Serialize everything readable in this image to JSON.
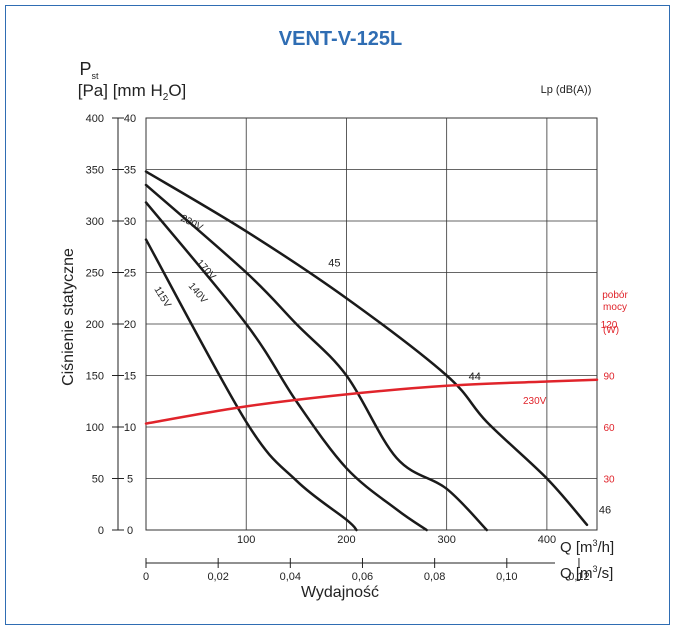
{
  "chart_data": {
    "type": "line",
    "title": "VENT-V-125L",
    "ylabel": "Ciśnienie statyczne",
    "y_unit_symbol": "P",
    "y_unit_sub": "st",
    "y_units": {
      "pa": "[Pa]",
      "mm_prefix": "[mm H",
      "mm_sub": "2",
      "mm_suffix": "O]"
    },
    "xlabel": "Wydajność",
    "x_unit_m3h": {
      "prefix": "Q [m",
      "sup": "3",
      "suffix": "/h]"
    },
    "x_unit_m3s": {
      "prefix": "Q [m",
      "sup": "3",
      "suffix": "/s]"
    },
    "noise_label": "Lp (dB(A))",
    "power_label_1": "pobór",
    "power_label_2": "mocy",
    "power_unit": "(W)",
    "grid": true,
    "xlim": [
      0,
      450
    ],
    "ylim_pa": [
      0,
      400
    ],
    "x_ticks_m3h": [
      "100",
      "200",
      "300",
      "400"
    ],
    "x_ticks_m3s": [
      "0",
      "0,02",
      "0,04",
      "0,06",
      "0,08",
      "0,10",
      "0,12"
    ],
    "y_ticks_pa": [
      "0",
      "50",
      "100",
      "150",
      "200",
      "250",
      "300",
      "350",
      "400"
    ],
    "y_ticks_mm": [
      "0",
      "5",
      "10",
      "15",
      "20",
      "25",
      "30",
      "35",
      "40"
    ],
    "y_ticks_power": [
      "30",
      "60",
      "90",
      "120"
    ],
    "colors": {
      "curve": "#1a1a1a",
      "power": "#e0242b",
      "title": "#2f6db3",
      "grid": "#333333"
    },
    "series": [
      {
        "name": "230V",
        "x": [
          0,
          100,
          200,
          300,
          340,
          400,
          440
        ],
        "y": [
          348,
          290,
          225,
          150,
          105,
          50,
          5
        ]
      },
      {
        "name": "170V",
        "x": [
          0,
          100,
          150,
          200,
          250,
          300,
          340
        ],
        "y": [
          335,
          250,
          200,
          150,
          70,
          40,
          0
        ]
      },
      {
        "name": "140V",
        "x": [
          0,
          100,
          150,
          200,
          250,
          280
        ],
        "y": [
          318,
          200,
          125,
          60,
          20,
          0
        ]
      },
      {
        "name": "115V",
        "x": [
          0,
          100,
          150,
          200,
          210
        ],
        "y": [
          282,
          105,
          48,
          10,
          0
        ]
      },
      {
        "name": "230V",
        "x": [
          0,
          100,
          200,
          300,
          400,
          450
        ],
        "y": [
          62,
          72,
          79,
          84,
          86.5,
          87.5
        ],
        "axis": "power"
      }
    ],
    "noise_levels": [
      {
        "label": "45",
        "x": 180,
        "y": 250
      },
      {
        "label": "44",
        "x": 320,
        "y": 140
      },
      {
        "label": "46",
        "x": 450,
        "y": 10
      }
    ]
  }
}
